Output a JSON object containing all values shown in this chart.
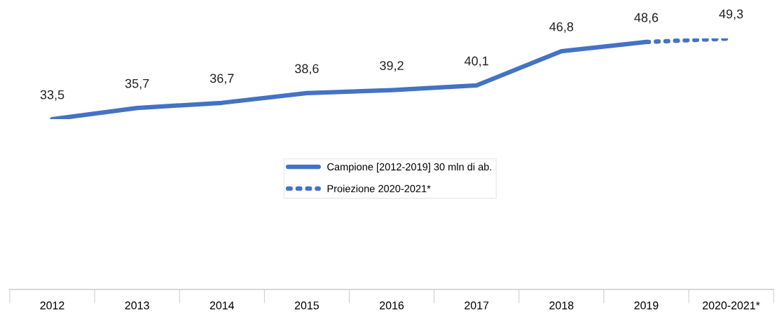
{
  "chart_data": {
    "type": "line",
    "categories": [
      "2012",
      "2013",
      "2014",
      "2015",
      "2016",
      "2017",
      "2018",
      "2019",
      "2020-2021*"
    ],
    "series": [
      {
        "name": "Campione [2012-2019] 30 mln di ab.",
        "color": "#4472c4",
        "line_style": "solid",
        "values": [
          33.5,
          35.7,
          36.7,
          38.6,
          39.2,
          40.1,
          46.8,
          48.6,
          null
        ],
        "value_labels": [
          "33,5",
          "35,7",
          "36,7",
          "38,6",
          "39,2",
          "40,1",
          "46,8",
          "48,6",
          null
        ]
      },
      {
        "name": "Proiezione 2020-2021*",
        "color": "#4472c4",
        "line_style": "dotted",
        "values": [
          null,
          null,
          null,
          null,
          null,
          null,
          null,
          48.6,
          49.3
        ],
        "value_labels": [
          null,
          null,
          null,
          null,
          null,
          null,
          null,
          null,
          "49,3"
        ]
      }
    ],
    "tick_labels": "x",
    "grid": false,
    "legend": "center",
    "marker": "none"
  }
}
